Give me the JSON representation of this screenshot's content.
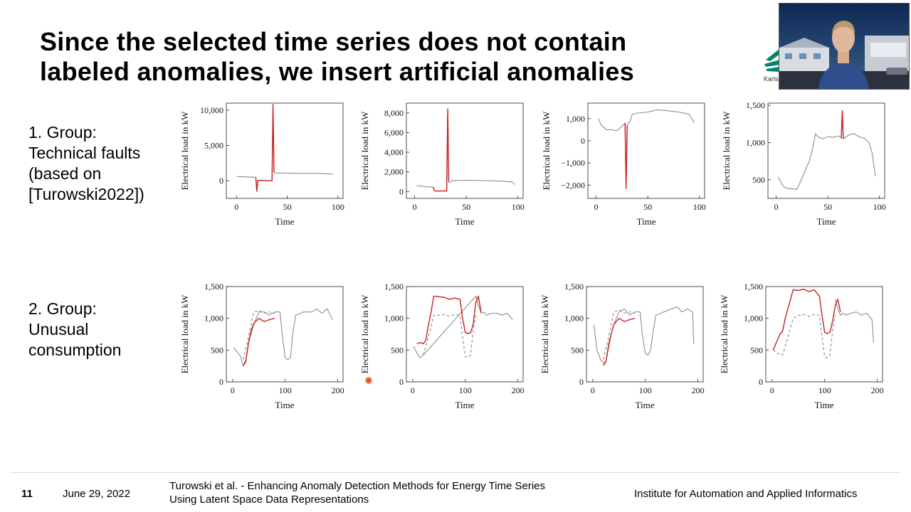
{
  "slide": {
    "title_line1": "Since the selected time series does not contain",
    "title_line2": "labeled anomalies, we insert artificial anomalies",
    "group1_lines": [
      "1. Group:",
      "Technical faults",
      "(based on",
      "[Turowski2022])"
    ],
    "group2_lines": [
      "2. Group:",
      "Unusual",
      "consumption"
    ],
    "logo_text": "Karls"
  },
  "footer": {
    "page_number": "11",
    "date": "June 29, 2022",
    "citation_line1": "Turowski et al. - Enhancing Anomaly Detection Methods for Energy Time Series",
    "citation_line2": "Using Latent Space Data Representations",
    "institute": "Institute for Automation and Applied Informatics"
  },
  "colors": {
    "anomaly": "#cc1f1f",
    "normal": "#8c8c8c",
    "original_dashed": "#8c8c8c",
    "logo_accent": "#00876c"
  },
  "chart_data": [
    {
      "type": "line",
      "xlabel": "Time",
      "ylabel": "Electrical load in kW",
      "xlim": [
        -10,
        105
      ],
      "ylim": [
        -2500,
        11000
      ],
      "xticks": [
        0,
        50,
        100
      ],
      "xtick_labels": [
        "0",
        "50",
        "100"
      ],
      "yticks": [
        0,
        5000,
        10000
      ],
      "ytick_labels": [
        "0",
        "5,000",
        "10,000"
      ],
      "series": [
        {
          "style": "normal",
          "x": [
            0,
            17,
            19,
            20,
            21,
            33,
            35,
            36,
            37,
            38,
            40,
            60,
            80,
            95
          ],
          "y": [
            600,
            500,
            500,
            -1500,
            50,
            0,
            0,
            10800,
            1200,
            1100,
            1100,
            1050,
            1050,
            950
          ]
        },
        {
          "style": "anomaly",
          "x": [
            19,
            20,
            21,
            33,
            35,
            36,
            37
          ],
          "y": [
            500,
            -1500,
            50,
            0,
            0,
            10800,
            1200
          ]
        }
      ]
    },
    {
      "type": "line",
      "xlabel": "Time",
      "ylabel": "Electrical load in kW",
      "xlim": [
        -8,
        105
      ],
      "ylim": [
        -700,
        9000
      ],
      "xticks": [
        0,
        50,
        100
      ],
      "xtick_labels": [
        "0",
        "50",
        "100"
      ],
      "yticks": [
        0,
        2000,
        4000,
        6000,
        8000
      ],
      "ytick_labels": [
        "0",
        "2,000",
        "4,000",
        "6,000",
        "8,000"
      ],
      "series": [
        {
          "style": "normal",
          "x": [
            2,
            10,
            18,
            19,
            20,
            31,
            32,
            33,
            34,
            36,
            50,
            70,
            85,
            95,
            97
          ],
          "y": [
            600,
            500,
            450,
            100,
            50,
            50,
            8400,
            1000,
            900,
            1100,
            1150,
            1100,
            1050,
            950,
            700
          ]
        },
        {
          "style": "anomaly",
          "x": [
            18,
            19,
            20,
            31,
            32,
            33
          ],
          "y": [
            450,
            100,
            50,
            50,
            8400,
            1000
          ]
        }
      ]
    },
    {
      "type": "line",
      "xlabel": "Time",
      "ylabel": "Electrical load in kW",
      "xlim": [
        -8,
        105
      ],
      "ylim": [
        -2600,
        1700
      ],
      "xticks": [
        0,
        50,
        100
      ],
      "xtick_labels": [
        "0",
        "50",
        "100"
      ],
      "yticks": [
        -2000,
        -1000,
        0,
        1000
      ],
      "ytick_labels": [
        "−2,000",
        "−1,000",
        "0",
        "1,000"
      ],
      "series": [
        {
          "style": "normal",
          "x": [
            2,
            5,
            10,
            15,
            20,
            25,
            28,
            29,
            30,
            33,
            35,
            40,
            50,
            60,
            70,
            80,
            90,
            95
          ],
          "y": [
            1000,
            700,
            500,
            500,
            450,
            650,
            800,
            -2150,
            700,
            900,
            1200,
            1250,
            1300,
            1400,
            1350,
            1300,
            1200,
            800
          ]
        },
        {
          "style": "anomaly",
          "x": [
            28,
            29,
            30
          ],
          "y": [
            800,
            -2150,
            700
          ]
        }
      ]
    },
    {
      "type": "line",
      "xlabel": "Time",
      "ylabel": "Electrical load in kW",
      "xlim": [
        -8,
        105
      ],
      "ylim": [
        250,
        1530
      ],
      "xticks": [
        0,
        50,
        100
      ],
      "xtick_labels": [
        "0",
        "50",
        "100"
      ],
      "yticks": [
        500,
        1000,
        1500
      ],
      "ytick_labels": [
        "500",
        "1,000",
        "1,500"
      ],
      "series": [
        {
          "style": "normal",
          "x": [
            2,
            5,
            8,
            12,
            16,
            20,
            22,
            25,
            28,
            32,
            35,
            38,
            40,
            45,
            50,
            55,
            60,
            63,
            64,
            65,
            70,
            75,
            80,
            85,
            90,
            93,
            96
          ],
          "y": [
            540,
            450,
            400,
            380,
            380,
            370,
            430,
            520,
            620,
            750,
            900,
            1120,
            1080,
            1050,
            1080,
            1070,
            1090,
            1060,
            1430,
            1050,
            1100,
            1120,
            1080,
            1060,
            1000,
            850,
            550
          ]
        },
        {
          "style": "anomaly",
          "x": [
            63,
            64,
            65
          ],
          "y": [
            1060,
            1430,
            1050
          ]
        }
      ]
    },
    {
      "type": "line",
      "xlabel": "Time",
      "ylabel": "Electrical load in kW",
      "xlim": [
        -12,
        210
      ],
      "ylim": [
        0,
        1500
      ],
      "xticks": [
        0,
        100,
        200
      ],
      "xtick_labels": [
        "0",
        "100",
        "200"
      ],
      "yticks": [
        0,
        500,
        1000,
        1500
      ],
      "ytick_labels": [
        "0",
        "500",
        "1,000",
        "1,500"
      ],
      "series": [
        {
          "style": "normal",
          "x": [
            2,
            8,
            15,
            20,
            25,
            30,
            40,
            50,
            60,
            70,
            80,
            90,
            95,
            100,
            105,
            110,
            115,
            120,
            135,
            150,
            160,
            170,
            180,
            190
          ],
          "y": [
            540,
            480,
            400,
            260,
            300,
            600,
            900,
            1100,
            1100,
            1050,
            1100,
            1100,
            700,
            380,
            350,
            380,
            800,
            1050,
            1100,
            1100,
            1150,
            1080,
            1150,
            980
          ]
        },
        {
          "style": "dashed",
          "x": [
            20,
            30,
            40,
            50,
            60,
            70,
            80
          ],
          "y": [
            350,
            700,
            1100,
            1120,
            1080,
            1100,
            1080
          ]
        },
        {
          "style": "anomaly",
          "x": [
            20,
            25,
            30,
            35,
            40,
            50,
            60,
            70,
            80
          ],
          "y": [
            250,
            330,
            600,
            800,
            920,
            1000,
            950,
            980,
            1000
          ]
        }
      ]
    },
    {
      "type": "line",
      "xlabel": "Time",
      "ylabel": "Electrical load in kW",
      "xlim": [
        -12,
        210
      ],
      "ylim": [
        0,
        1500
      ],
      "xticks": [
        0,
        100,
        200
      ],
      "xtick_labels": [
        "0",
        "100",
        "200"
      ],
      "yticks": [
        0,
        500,
        1000,
        1500
      ],
      "ytick_labels": [
        "0",
        "500",
        "1,000",
        "1,500"
      ],
      "series": [
        {
          "style": "normal",
          "x": [
            2,
            8,
            14,
            20,
            120,
            125,
            130,
            135,
            140,
            150,
            160,
            170,
            180,
            190
          ],
          "y": [
            560,
            450,
            380,
            420,
            1350,
            1200,
            1080,
            1100,
            1050,
            1080,
            1080,
            1050,
            1080,
            980
          ]
        },
        {
          "style": "dashed",
          "x": [
            20,
            30,
            40,
            50,
            60,
            70,
            80,
            90,
            95,
            100,
            105,
            110,
            115,
            120
          ],
          "y": [
            420,
            700,
            1050,
            1050,
            1060,
            1030,
            1060,
            1050,
            700,
            400,
            380,
            420,
            800,
            1050
          ]
        },
        {
          "style": "anomaly",
          "x": [
            8,
            15,
            20,
            25,
            30,
            35,
            40,
            50,
            60,
            70,
            80,
            90,
            95,
            100,
            105,
            110,
            115,
            120,
            125,
            130
          ],
          "y": [
            600,
            620,
            600,
            650,
            900,
            1100,
            1350,
            1340,
            1330,
            1300,
            1320,
            1300,
            1000,
            780,
            760,
            770,
            900,
            1250,
            1350,
            1100
          ]
        }
      ]
    },
    {
      "type": "line",
      "xlabel": "Time",
      "ylabel": "Electrical load in kW",
      "xlim": [
        -12,
        210
      ],
      "ylim": [
        0,
        1500
      ],
      "xticks": [
        0,
        100,
        200
      ],
      "xtick_labels": [
        "0",
        "100",
        "200"
      ],
      "yticks": [
        0,
        500,
        1000,
        1500
      ],
      "ytick_labels": [
        "0",
        "500",
        "1,000",
        "1,500"
      ],
      "series": [
        {
          "style": "normal",
          "x": [
            2,
            8,
            15,
            20,
            25,
            30,
            40,
            50,
            60,
            70,
            80,
            90,
            95,
            100,
            105,
            110,
            115,
            120,
            135,
            150,
            160,
            170,
            180,
            190,
            192
          ],
          "y": [
            900,
            500,
            350,
            300,
            320,
            600,
            900,
            1100,
            1150,
            1050,
            1100,
            1100,
            700,
            450,
            420,
            500,
            800,
            1050,
            1100,
            1150,
            1180,
            1100,
            1150,
            1100,
            600
          ]
        },
        {
          "style": "dashed",
          "x": [
            20,
            30,
            40,
            50,
            60,
            70,
            80
          ],
          "y": [
            350,
            700,
            1100,
            1130,
            1080,
            1100,
            1080
          ]
        },
        {
          "style": "anomaly",
          "x": [
            20,
            25,
            30,
            35,
            40,
            50,
            60,
            70,
            80
          ],
          "y": [
            260,
            320,
            550,
            750,
            900,
            1000,
            950,
            980,
            1000
          ]
        }
      ]
    },
    {
      "type": "line",
      "xlabel": "Time",
      "ylabel": "Electrical load in kW",
      "xlim": [
        -12,
        210
      ],
      "ylim": [
        0,
        1500
      ],
      "xticks": [
        0,
        100,
        200
      ],
      "xtick_labels": [
        "0",
        "100",
        "200"
      ],
      "yticks": [
        0,
        500,
        1000,
        1500
      ],
      "ytick_labels": [
        "0",
        "500",
        "1,000",
        "1,500"
      ],
      "series": [
        {
          "style": "normal",
          "x": [
            120,
            125,
            130,
            135,
            140,
            150,
            160,
            170,
            180,
            190,
            193
          ],
          "y": [
            1300,
            1150,
            1050,
            1080,
            1050,
            1080,
            1100,
            1050,
            1080,
            980,
            620
          ]
        },
        {
          "style": "dashed",
          "x": [
            2,
            10,
            20,
            30,
            40,
            50,
            60,
            70,
            80,
            90,
            95,
            100,
            105,
            110,
            115,
            120
          ],
          "y": [
            500,
            450,
            420,
            700,
            1000,
            1050,
            1060,
            1030,
            1060,
            1050,
            700,
            400,
            380,
            420,
            800,
            1050
          ]
        },
        {
          "style": "anomaly",
          "x": [
            2,
            8,
            15,
            20,
            25,
            30,
            35,
            40,
            50,
            60,
            70,
            80,
            90,
            95,
            100,
            105,
            110,
            115,
            120,
            125,
            130
          ],
          "y": [
            500,
            620,
            750,
            800,
            1000,
            1150,
            1300,
            1450,
            1440,
            1460,
            1420,
            1450,
            1350,
            1050,
            780,
            760,
            780,
            950,
            1200,
            1300,
            1100
          ]
        }
      ]
    }
  ]
}
